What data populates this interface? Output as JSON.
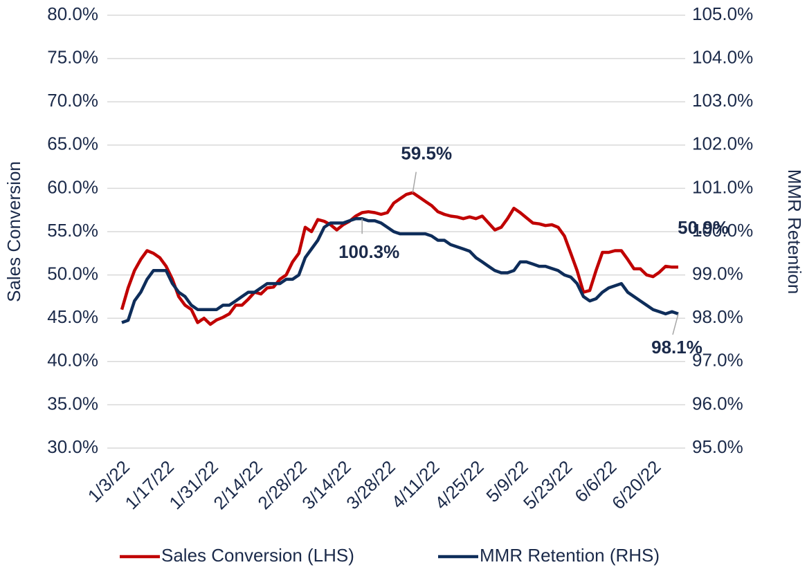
{
  "chart_data": {
    "type": "line",
    "categories": [
      "1/3/22",
      null,
      null,
      null,
      null,
      null,
      null,
      "1/17/22",
      null,
      null,
      null,
      null,
      null,
      null,
      "1/31/22",
      null,
      null,
      null,
      null,
      null,
      null,
      "2/14/22",
      null,
      null,
      null,
      null,
      null,
      null,
      "2/28/22",
      null,
      null,
      null,
      null,
      null,
      null,
      "3/14/22",
      null,
      null,
      null,
      null,
      null,
      null,
      "3/28/22",
      null,
      null,
      null,
      null,
      null,
      null,
      "4/11/22",
      null,
      null,
      null,
      null,
      null,
      null,
      "4/25/22",
      null,
      null,
      null,
      null,
      null,
      null,
      "5/9/22",
      null,
      null,
      null,
      null,
      null,
      null,
      "5/23/22",
      null,
      null,
      null,
      null,
      null,
      null,
      "6/6/22",
      null,
      null,
      null,
      null,
      null,
      null,
      "6/20/22",
      null,
      null,
      null,
      null
    ],
    "ylabel": "Sales Conversion",
    "y2label": "MMR Retention",
    "ylim": [
      30,
      80
    ],
    "yticks": [
      {
        "value": 30,
        "label": "30.0%"
      },
      {
        "value": 35,
        "label": "35.0%"
      },
      {
        "value": 40,
        "label": "40.0%"
      },
      {
        "value": 45,
        "label": "45.0%"
      },
      {
        "value": 50,
        "label": "50.0%"
      },
      {
        "value": 55,
        "label": "55.0%"
      },
      {
        "value": 60,
        "label": "60.0%"
      },
      {
        "value": 65,
        "label": "65.0%"
      },
      {
        "value": 70,
        "label": "70.0%"
      },
      {
        "value": 75,
        "label": "75.0%"
      },
      {
        "value": 80,
        "label": "80.0%"
      }
    ],
    "y2lim": [
      95,
      105
    ],
    "y2ticks": [
      {
        "value": 95,
        "label": "95.0%"
      },
      {
        "value": 96,
        "label": "96.0%"
      },
      {
        "value": 97,
        "label": "97.0%"
      },
      {
        "value": 98,
        "label": "98.0%"
      },
      {
        "value": 99,
        "label": "99.0%"
      },
      {
        "value": 100,
        "label": "100.0%"
      },
      {
        "value": 101,
        "label": "101.0%"
      },
      {
        "value": 102,
        "label": "102.0%"
      },
      {
        "value": 103,
        "label": "103.0%"
      },
      {
        "value": 104,
        "label": "104.0%"
      },
      {
        "value": 105,
        "label": "105.0%"
      }
    ],
    "grid": true,
    "legend": "bottom",
    "series": [
      {
        "name": "Sales Conversion (LHS)",
        "color": "#c00000",
        "axis": "y",
        "values": [
          46.0,
          48.5,
          50.5,
          51.8,
          52.8,
          52.5,
          52.0,
          51.0,
          49.5,
          47.5,
          46.5,
          46.0,
          44.5,
          45.0,
          44.3,
          44.8,
          45.1,
          45.5,
          46.5,
          46.5,
          47.2,
          48.0,
          47.8,
          48.5,
          48.6,
          49.5,
          50.0,
          51.5,
          52.5,
          55.5,
          55.0,
          56.4,
          56.2,
          55.8,
          55.2,
          55.8,
          56.2,
          56.8,
          57.2,
          57.3,
          57.2,
          57.0,
          57.2,
          58.3,
          58.8,
          59.3,
          59.5,
          59.0,
          58.5,
          58.0,
          57.3,
          57.0,
          56.8,
          56.7,
          56.5,
          56.7,
          56.5,
          56.8,
          56.0,
          55.2,
          55.5,
          56.5,
          57.7,
          57.2,
          56.6,
          56.0,
          55.9,
          55.7,
          55.8,
          55.5,
          54.5,
          52.5,
          50.5,
          48.0,
          48.2,
          50.5,
          52.6,
          52.6,
          52.8,
          52.8,
          51.8,
          50.7,
          50.7,
          50.0,
          49.8,
          50.3,
          51.0,
          50.9,
          50.9
        ],
        "value_labels": [
          null,
          null,
          null,
          null,
          null,
          null,
          null,
          null,
          null,
          null,
          null,
          null,
          null,
          null,
          null,
          null,
          null,
          null,
          null,
          null,
          null,
          null,
          null,
          null,
          null,
          null,
          null,
          null,
          null,
          null,
          null,
          null,
          null,
          null,
          null,
          null,
          null,
          null,
          null,
          null,
          null,
          null,
          null,
          null,
          null,
          null,
          "59.5%",
          null,
          null,
          null,
          null,
          null,
          null,
          null,
          null,
          null,
          null,
          null,
          null,
          null,
          null,
          null,
          null,
          null,
          null,
          null,
          null,
          null,
          null,
          null,
          null,
          null,
          null,
          null,
          null,
          null,
          null,
          null,
          null,
          null,
          null,
          null,
          null,
          null,
          null,
          null,
          null,
          null,
          "50.9%"
        ]
      },
      {
        "name": "MMR Retention (RHS)",
        "color": "#0e2d5a",
        "axis": "y2",
        "values": [
          97.9,
          97.95,
          98.4,
          98.6,
          98.9,
          99.1,
          99.1,
          99.1,
          98.8,
          98.6,
          98.5,
          98.3,
          98.2,
          98.2,
          98.2,
          98.2,
          98.3,
          98.3,
          98.4,
          98.5,
          98.6,
          98.6,
          98.7,
          98.8,
          98.8,
          98.8,
          98.9,
          98.9,
          99.0,
          99.4,
          99.6,
          99.8,
          100.1,
          100.2,
          100.2,
          100.2,
          100.25,
          100.3,
          100.3,
          100.25,
          100.25,
          100.2,
          100.1,
          100.0,
          99.95,
          99.95,
          99.95,
          99.95,
          99.95,
          99.9,
          99.8,
          99.8,
          99.7,
          99.65,
          99.6,
          99.55,
          99.4,
          99.3,
          99.2,
          99.1,
          99.05,
          99.05,
          99.1,
          99.3,
          99.3,
          99.25,
          99.2,
          99.2,
          99.15,
          99.1,
          99.0,
          98.95,
          98.8,
          98.5,
          98.4,
          98.45,
          98.6,
          98.7,
          98.75,
          98.8,
          98.6,
          98.5,
          98.4,
          98.3,
          98.2,
          98.15,
          98.1,
          98.15,
          98.1
        ],
        "value_labels": [
          null,
          null,
          null,
          null,
          null,
          null,
          null,
          null,
          null,
          null,
          null,
          null,
          null,
          null,
          null,
          null,
          null,
          null,
          null,
          null,
          null,
          null,
          null,
          null,
          null,
          null,
          null,
          null,
          null,
          null,
          null,
          null,
          null,
          null,
          null,
          null,
          null,
          null,
          "100.3%",
          null,
          null,
          null,
          null,
          null,
          null,
          null,
          null,
          null,
          null,
          null,
          null,
          null,
          null,
          null,
          null,
          null,
          null,
          null,
          null,
          null,
          null,
          null,
          null,
          null,
          null,
          null,
          null,
          null,
          null,
          null,
          null,
          null,
          null,
          null,
          null,
          null,
          null,
          null,
          null,
          null,
          null,
          null,
          null,
          null,
          null,
          null,
          null,
          null,
          "98.1%"
        ]
      }
    ]
  }
}
